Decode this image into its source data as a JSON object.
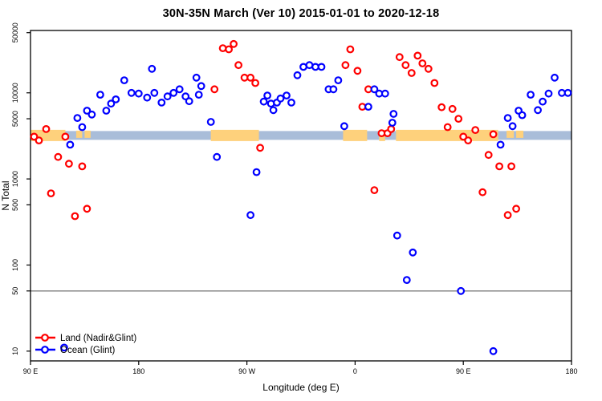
{
  "chart_data": {
    "type": "scatter",
    "title": "30N-35N March (Ver 10)  2015-01-01 to 2020-12-18",
    "xlabel": "Longitude (deg E)",
    "ylabel": "N Total",
    "x_axis": {
      "range": [
        90,
        540
      ],
      "ticks": [
        {
          "pos": 90,
          "label": "90 E"
        },
        {
          "pos": 180,
          "label": "180"
        },
        {
          "pos": 270,
          "label": "90 W"
        },
        {
          "pos": 360,
          "label": "0"
        },
        {
          "pos": 450,
          "label": "90 E"
        },
        {
          "pos": 540,
          "label": "180"
        }
      ]
    },
    "y_axis": {
      "scale": "log",
      "range": [
        7.7,
        53000
      ],
      "ticks": [
        {
          "value": 50000,
          "label": "50000"
        },
        {
          "value": 10000,
          "label": "10000"
        },
        {
          "value": 5000,
          "label": "5000"
        },
        {
          "value": 1000,
          "label": "1000"
        },
        {
          "value": 500,
          "label": "500"
        },
        {
          "value": 100,
          "label": "100"
        },
        {
          "value": 50,
          "label": "50"
        },
        {
          "value": 10,
          "label": "10"
        }
      ]
    },
    "reference_line": {
      "value": 50,
      "color": "#7f7f7f"
    },
    "map_band": {
      "value_center": 3200,
      "ocean_color": "#a9bdd9",
      "land_color": "#fed17c",
      "ocean_span": [
        90,
        540
      ],
      "land_segments": [
        [
          90,
          119
        ],
        [
          240,
          280
        ],
        [
          350,
          370
        ],
        [
          380,
          385
        ],
        [
          394,
          479
        ]
      ],
      "partial_land_segments": [
        [
          128,
          133
        ],
        [
          135,
          140
        ],
        [
          486,
          492
        ],
        [
          494,
          500
        ]
      ]
    },
    "series": [
      {
        "name": "Land (Nadir&Glint)",
        "color": "#ff0000",
        "points": [
          [
            93,
            3100
          ],
          [
            97,
            2800
          ],
          [
            103,
            3800
          ],
          [
            107,
            680
          ],
          [
            113,
            1800
          ],
          [
            119,
            3100
          ],
          [
            122,
            1500
          ],
          [
            127,
            370
          ],
          [
            133,
            1400
          ],
          [
            137,
            450
          ],
          [
            243,
            11000
          ],
          [
            250,
            33000
          ],
          [
            255,
            32000
          ],
          [
            259,
            37000
          ],
          [
            263,
            21000
          ],
          [
            268,
            15000
          ],
          [
            273,
            15000
          ],
          [
            277,
            13000
          ],
          [
            281,
            2300
          ],
          [
            352,
            21000
          ],
          [
            356,
            32000
          ],
          [
            362,
            18000
          ],
          [
            366,
            6900
          ],
          [
            371,
            11000
          ],
          [
            376,
            740
          ],
          [
            382,
            3400
          ],
          [
            387,
            3400
          ],
          [
            390,
            3800
          ],
          [
            397,
            26000
          ],
          [
            402,
            21000
          ],
          [
            407,
            17000
          ],
          [
            412,
            27000
          ],
          [
            416,
            22000
          ],
          [
            421,
            19000
          ],
          [
            426,
            13000
          ],
          [
            432,
            6800
          ],
          [
            437,
            4000
          ],
          [
            441,
            6500
          ],
          [
            446,
            5000
          ],
          [
            450,
            3100
          ],
          [
            454,
            2800
          ],
          [
            460,
            3700
          ],
          [
            466,
            700
          ],
          [
            471,
            1900
          ],
          [
            475,
            3300
          ],
          [
            480,
            1400
          ],
          [
            487,
            380
          ],
          [
            490,
            1400
          ],
          [
            494,
            450
          ]
        ]
      },
      {
        "name": "Ocean (Glint)",
        "color": "#0000ff",
        "points": [
          [
            118,
            11
          ],
          [
            123,
            2500
          ],
          [
            129,
            5100
          ],
          [
            133,
            4000
          ],
          [
            137,
            6200
          ],
          [
            141,
            5600
          ],
          [
            148,
            9500
          ],
          [
            153,
            6200
          ],
          [
            157,
            7500
          ],
          [
            161,
            8400
          ],
          [
            168,
            14000
          ],
          [
            174,
            10000
          ],
          [
            180,
            9800
          ],
          [
            187,
            8800
          ],
          [
            191,
            19000
          ],
          [
            193,
            10000
          ],
          [
            199,
            7700
          ],
          [
            204,
            9100
          ],
          [
            209,
            10000
          ],
          [
            214,
            11000
          ],
          [
            219,
            9100
          ],
          [
            222,
            8000
          ],
          [
            228,
            15000
          ],
          [
            230,
            9500
          ],
          [
            232,
            12000
          ],
          [
            240,
            4600
          ],
          [
            245,
            1800
          ],
          [
            273,
            380
          ],
          [
            278,
            1200
          ],
          [
            284,
            7900
          ],
          [
            287,
            9300
          ],
          [
            290,
            7500
          ],
          [
            292,
            6300
          ],
          [
            295,
            7700
          ],
          [
            298,
            8600
          ],
          [
            303,
            9300
          ],
          [
            307,
            7700
          ],
          [
            312,
            16000
          ],
          [
            317,
            20000
          ],
          [
            322,
            21000
          ],
          [
            327,
            20000
          ],
          [
            332,
            20000
          ],
          [
            338,
            11000
          ],
          [
            342,
            11000
          ],
          [
            346,
            14000
          ],
          [
            351,
            4100
          ],
          [
            371,
            6900
          ],
          [
            376,
            11000
          ],
          [
            380,
            9800
          ],
          [
            385,
            9800
          ],
          [
            391,
            4500
          ],
          [
            392,
            5700
          ],
          [
            395,
            220
          ],
          [
            403,
            67
          ],
          [
            408,
            140
          ],
          [
            448,
            50
          ],
          [
            475,
            10
          ],
          [
            481,
            2500
          ],
          [
            487,
            5100
          ],
          [
            491,
            4100
          ],
          [
            496,
            6200
          ],
          [
            499,
            5500
          ],
          [
            506,
            9500
          ],
          [
            512,
            6300
          ],
          [
            516,
            7900
          ],
          [
            521,
            9800
          ],
          [
            526,
            15000
          ],
          [
            532,
            10000
          ],
          [
            537,
            10000
          ]
        ]
      }
    ],
    "legend_position": "bottom-left"
  }
}
